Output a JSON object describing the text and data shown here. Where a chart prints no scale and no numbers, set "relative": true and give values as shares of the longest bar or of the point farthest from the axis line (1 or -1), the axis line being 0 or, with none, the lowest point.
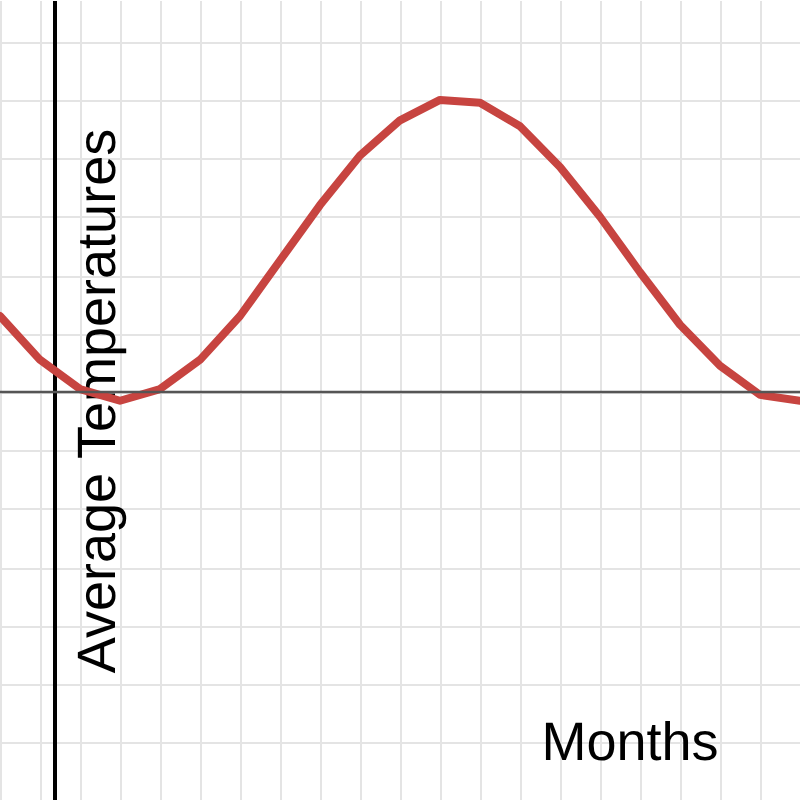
{
  "chart_data": {
    "type": "line",
    "relative": true,
    "annotations": [
      "Months"
    ],
    "ylabel": "Average Temperatures",
    "grid": true,
    "categories": [
      null,
      null,
      null,
      null,
      null,
      null,
      null,
      null,
      null,
      null,
      null,
      null,
      null,
      null,
      null,
      null,
      null,
      null,
      null,
      null,
      null
    ],
    "series": [
      {
        "color": "#c74440",
        "values": [
          0.26,
          0.11,
          0.01,
          -0.03,
          0.01,
          0.11,
          0.26,
          0.45,
          0.64,
          0.81,
          0.93,
          1,
          0.99,
          0.91,
          0.77,
          0.6,
          0.41,
          0.23,
          0.09,
          -0.01,
          -0.03
        ]
      }
    ]
  }
}
